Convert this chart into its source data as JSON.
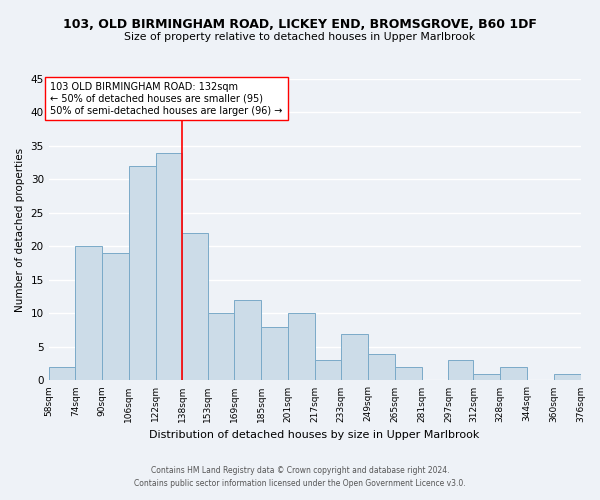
{
  "title": "103, OLD BIRMINGHAM ROAD, LICKEY END, BROMSGROVE, B60 1DF",
  "subtitle": "Size of property relative to detached houses in Upper Marlbrook",
  "xlabel": "Distribution of detached houses by size in Upper Marlbrook",
  "ylabel": "Number of detached properties",
  "bar_color": "#ccdce8",
  "bar_edge_color": "#7aaac8",
  "bins": [
    58,
    74,
    90,
    106,
    122,
    138,
    153,
    169,
    185,
    201,
    217,
    233,
    249,
    265,
    281,
    297,
    312,
    328,
    344,
    360,
    376
  ],
  "bin_labels": [
    "58sqm",
    "74sqm",
    "90sqm",
    "106sqm",
    "122sqm",
    "138sqm",
    "153sqm",
    "169sqm",
    "185sqm",
    "201sqm",
    "217sqm",
    "233sqm",
    "249sqm",
    "265sqm",
    "281sqm",
    "297sqm",
    "312sqm",
    "328sqm",
    "344sqm",
    "360sqm",
    "376sqm"
  ],
  "counts": [
    2,
    20,
    19,
    32,
    34,
    22,
    10,
    12,
    8,
    10,
    3,
    7,
    4,
    2,
    0,
    3,
    1,
    2,
    0,
    1
  ],
  "ylim": [
    0,
    45
  ],
  "yticks": [
    0,
    5,
    10,
    15,
    20,
    25,
    30,
    35,
    40,
    45
  ],
  "vline_x": 138,
  "annotation_line1": "103 OLD BIRMINGHAM ROAD: 132sqm",
  "annotation_line2": "← 50% of detached houses are smaller (95)",
  "annotation_line3": "50% of semi-detached houses are larger (96) →",
  "footer1": "Contains HM Land Registry data © Crown copyright and database right 2024.",
  "footer2": "Contains public sector information licensed under the Open Government Licence v3.0.",
  "background_color": "#eef2f7",
  "grid_color": "#ffffff"
}
